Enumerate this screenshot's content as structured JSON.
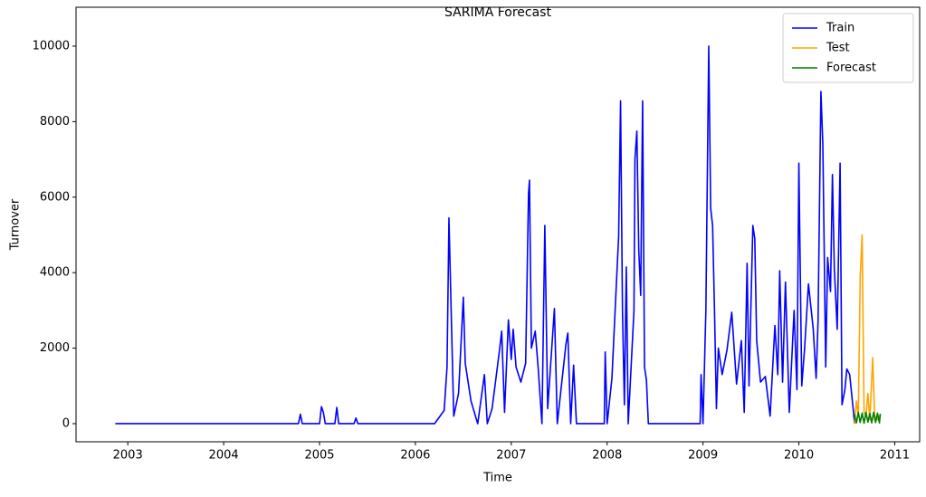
{
  "chart_data": {
    "type": "line",
    "title": "SARIMA Forecast",
    "x_label": "Time",
    "y_label": "Turnover",
    "xlim": [
      2002.46,
      2011.26
    ],
    "xticks": [
      2003,
      2004,
      2005,
      2006,
      2007,
      2008,
      2009,
      2010,
      2011
    ],
    "ylim": [
      -480,
      11030
    ],
    "yticks": [
      0,
      2000,
      4000,
      6000,
      8000,
      10000
    ],
    "legend": "upper right",
    "series": [
      {
        "name": "Train",
        "color": "#0000ff",
        "x": [
          2002.87,
          2004.78,
          2004.8,
          2004.82,
          2005.0,
          2005.02,
          2005.04,
          2005.06,
          2005.16,
          2005.18,
          2005.2,
          2005.36,
          2005.38,
          2005.4,
          2006.2,
          2006.3,
          2006.33,
          2006.35,
          2006.37,
          2006.4,
          2006.45,
          2006.5,
          2006.52,
          2006.58,
          2006.65,
          2006.72,
          2006.75,
          2006.8,
          2006.88,
          2006.9,
          2006.93,
          2006.97,
          2007.0,
          2007.02,
          2007.05,
          2007.1,
          2007.15,
          2007.18,
          2007.19,
          2007.21,
          2007.25,
          2007.28,
          2007.32,
          2007.35,
          2007.38,
          2007.45,
          2007.48,
          2007.57,
          2007.59,
          2007.62,
          2007.65,
          2007.68,
          2007.97,
          2007.98,
          2008.0,
          2008.05,
          2008.1,
          2008.12,
          2008.14,
          2008.16,
          2008.18,
          2008.2,
          2008.22,
          2008.28,
          2008.29,
          2008.31,
          2008.33,
          2008.35,
          2008.37,
          2008.39,
          2008.41,
          2008.43,
          2008.97,
          2008.98,
          2009.0,
          2009.03,
          2009.05,
          2009.06,
          2009.08,
          2009.1,
          2009.12,
          2009.14,
          2009.16,
          2009.2,
          2009.25,
          2009.3,
          2009.35,
          2009.4,
          2009.43,
          2009.46,
          2009.48,
          2009.52,
          2009.54,
          2009.56,
          2009.6,
          2009.65,
          2009.7,
          2009.75,
          2009.78,
          2009.8,
          2009.83,
          2009.86,
          2009.9,
          2009.95,
          2009.98,
          2010.0,
          2010.03,
          2010.06,
          2010.1,
          2010.15,
          2010.18,
          2010.2,
          2010.23,
          2010.25,
          2010.28,
          2010.3,
          2010.33,
          2010.35,
          2010.37,
          2010.4,
          2010.43,
          2010.45,
          2010.48,
          2010.5,
          2010.53,
          2010.57,
          2010.58
        ],
        "values": [
          0,
          0,
          250,
          0,
          0,
          450,
          300,
          0,
          0,
          430,
          0,
          0,
          150,
          0,
          0,
          350,
          1500,
          5450,
          3300,
          200,
          800,
          3350,
          1600,
          600,
          0,
          1300,
          0,
          400,
          2000,
          2450,
          300,
          2750,
          1700,
          2500,
          1500,
          1100,
          1600,
          6100,
          6450,
          2000,
          2450,
          1500,
          0,
          5250,
          400,
          3050,
          0,
          2100,
          2400,
          0,
          1550,
          0,
          0,
          1900,
          0,
          1200,
          3900,
          4950,
          8550,
          3000,
          500,
          4150,
          0,
          3000,
          7000,
          7750,
          4600,
          3400,
          8550,
          1500,
          1150,
          0,
          0,
          1300,
          0,
          3000,
          7700,
          10000,
          5700,
          5250,
          3000,
          400,
          2000,
          1300,
          1950,
          2950,
          1050,
          2200,
          300,
          4250,
          1000,
          5250,
          4900,
          2200,
          1100,
          1250,
          200,
          2600,
          1300,
          4050,
          1100,
          3750,
          300,
          3000,
          900,
          6900,
          1000,
          2000,
          3700,
          2500,
          1200,
          2700,
          8800,
          7400,
          1500,
          4400,
          3500,
          6600,
          4100,
          2500,
          6900,
          500,
          900,
          1450,
          1300,
          300,
          0
        ]
      },
      {
        "name": "Test",
        "color": "#ffa500",
        "x": [
          2010.58,
          2010.6,
          2010.62,
          2010.64,
          2010.66,
          2010.68,
          2010.7,
          2010.72,
          2010.74,
          2010.77,
          2010.79,
          2010.82,
          2010.85
        ],
        "values": [
          0,
          600,
          200,
          3900,
          5000,
          300,
          200,
          800,
          100,
          1750,
          200,
          100,
          250
        ]
      },
      {
        "name": "Forecast",
        "color": "#008000",
        "x": [
          2010.58,
          2010.6,
          2010.62,
          2010.64,
          2010.66,
          2010.68,
          2010.7,
          2010.72,
          2010.74,
          2010.76,
          2010.78,
          2010.8,
          2010.82,
          2010.84,
          2010.85
        ],
        "values": [
          250,
          20,
          300,
          30,
          280,
          10,
          300,
          40,
          270,
          20,
          300,
          30,
          280,
          20,
          260
        ]
      }
    ]
  }
}
